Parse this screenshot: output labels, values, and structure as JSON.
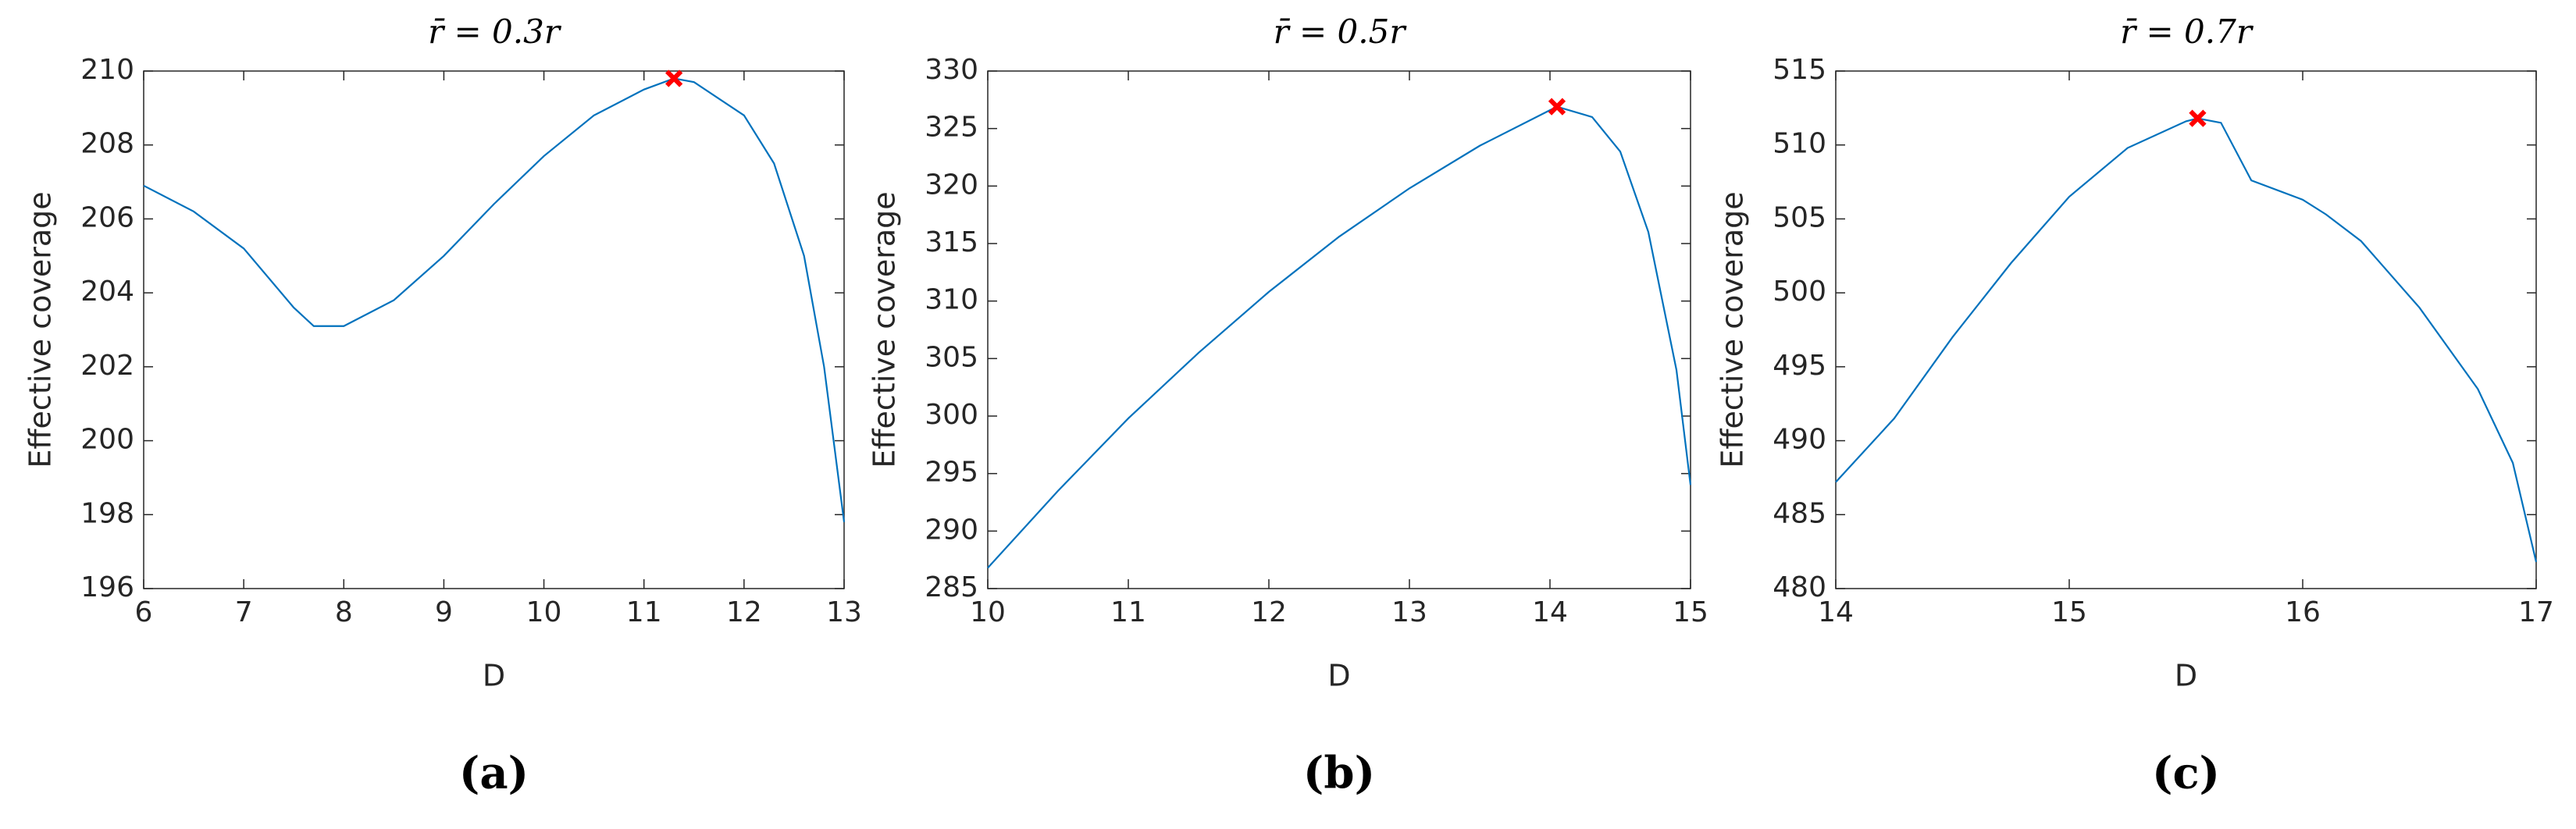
{
  "chart_data": [
    {
      "type": "line",
      "title": "r̄ = 0.3r",
      "xlabel": "D",
      "ylabel": "Effective coverage",
      "caption": "(a)",
      "x": [
        6,
        6.5,
        7,
        7.5,
        7.7,
        8,
        8.5,
        9,
        9.5,
        10,
        10.5,
        11,
        11.3,
        11.5,
        12,
        12.3,
        12.6,
        12.8,
        13
      ],
      "series": [
        {
          "color": "#0072bd",
          "values": [
            206.9,
            206.2,
            205.2,
            203.6,
            203.1,
            203.1,
            203.8,
            205.0,
            206.4,
            207.7,
            208.8,
            209.5,
            209.8,
            209.7,
            208.8,
            207.5,
            205,
            202,
            197.8
          ]
        }
      ],
      "marker": {
        "x": 11.3,
        "y": 209.8,
        "color": "#ff0000"
      },
      "xlim": [
        6,
        13
      ],
      "xticks": [
        6,
        7,
        8,
        9,
        10,
        11,
        12,
        13
      ],
      "ylim": [
        196,
        210
      ],
      "yticks": [
        196,
        198,
        200,
        202,
        204,
        206,
        208,
        210
      ]
    },
    {
      "type": "line",
      "title": "r̄ = 0.5r",
      "xlabel": "D",
      "ylabel": "Effective coverage",
      "caption": "(b)",
      "x": [
        10,
        10.5,
        11,
        11.5,
        12,
        12.5,
        13,
        13.5,
        14,
        14.05,
        14.3,
        14.5,
        14.7,
        14.9,
        15
      ],
      "series": [
        {
          "color": "#0072bd",
          "values": [
            286.8,
            293.5,
            299.8,
            305.5,
            310.8,
            315.6,
            319.8,
            323.5,
            326.6,
            326.9,
            326,
            323,
            316,
            304,
            294
          ]
        }
      ],
      "marker": {
        "x": 14.05,
        "y": 326.9,
        "color": "#ff0000"
      },
      "xlim": [
        10,
        15
      ],
      "xticks": [
        10,
        11,
        12,
        13,
        14,
        15
      ],
      "ylim": [
        285,
        330
      ],
      "yticks": [
        285,
        290,
        295,
        300,
        305,
        310,
        315,
        320,
        325,
        330
      ]
    },
    {
      "type": "line",
      "title": "r̄ = 0.7r",
      "xlabel": "D",
      "ylabel": "Effective coverage",
      "caption": "(c)",
      "x": [
        14,
        14.25,
        14.5,
        14.75,
        15,
        15.25,
        15.5,
        15.55,
        15.65,
        15.78,
        16,
        16.1,
        16.25,
        16.5,
        16.75,
        16.9,
        17
      ],
      "series": [
        {
          "color": "#0072bd",
          "values": [
            487.2,
            491.5,
            497,
            502,
            506.5,
            509.8,
            511.6,
            511.8,
            511.5,
            507.6,
            506.3,
            505.3,
            503.5,
            499,
            493.5,
            488.5,
            481.8
          ]
        }
      ],
      "marker": {
        "x": 15.55,
        "y": 511.8,
        "color": "#ff0000"
      },
      "xlim": [
        14,
        17
      ],
      "xticks": [
        14,
        15,
        16,
        17
      ],
      "ylim": [
        480,
        515
      ],
      "yticks": [
        480,
        485,
        490,
        495,
        500,
        505,
        510,
        515
      ]
    }
  ]
}
